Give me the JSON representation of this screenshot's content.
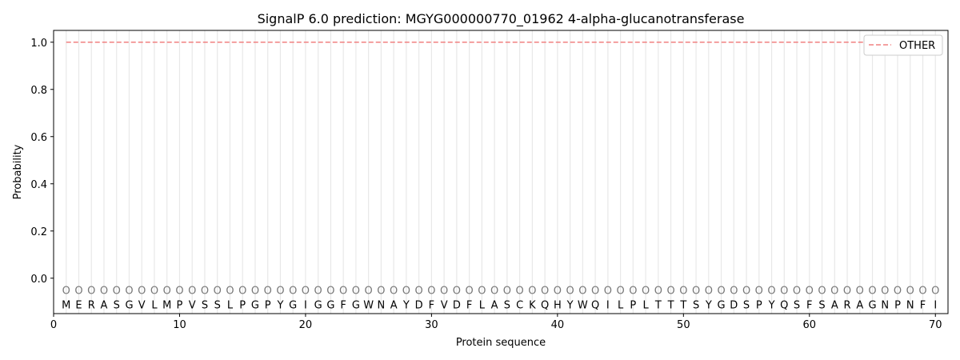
{
  "chart_data": {
    "type": "line",
    "title": "SignalP 6.0 prediction: MGYG000000770_01962 4-alpha-glucanotransferase",
    "xlabel": "Protein sequence",
    "ylabel": "Probability",
    "xlim": [
      0,
      71
    ],
    "ylim": [
      -0.15,
      1.05
    ],
    "xticks": [
      0,
      10,
      20,
      30,
      40,
      50,
      60,
      70
    ],
    "yticks": [
      0.0,
      0.2,
      0.4,
      0.6,
      0.8,
      1.0
    ],
    "ytick_labels": [
      "0.0",
      "0.2",
      "0.4",
      "0.6",
      "0.8",
      "1.0"
    ],
    "grid": "vertical lines at each residue",
    "legend_placement": "top-right",
    "sequence": [
      "M",
      "E",
      "R",
      "A",
      "S",
      "G",
      "V",
      "L",
      "M",
      "P",
      "V",
      "S",
      "S",
      "L",
      "P",
      "G",
      "P",
      "Y",
      "G",
      "I",
      "G",
      "G",
      "F",
      "G",
      "W",
      "N",
      "A",
      "Y",
      "D",
      "F",
      "V",
      "D",
      "F",
      "L",
      "A",
      "S",
      "C",
      "K",
      "Q",
      "H",
      "Y",
      "W",
      "Q",
      "I",
      "L",
      "P",
      "L",
      "T",
      "T",
      "T",
      "S",
      "Y",
      "G",
      "D",
      "S",
      "P",
      "Y",
      "Q",
      "S",
      "F",
      "S",
      "A",
      "R",
      "A",
      "G",
      "N",
      "P",
      "N",
      "F",
      "I"
    ],
    "per_residue_label": "O",
    "series": [
      {
        "name": "OTHER",
        "color": "#f08080",
        "style": "dashed",
        "x_start": 1,
        "x_end": 70,
        "value": 1.0
      }
    ]
  }
}
